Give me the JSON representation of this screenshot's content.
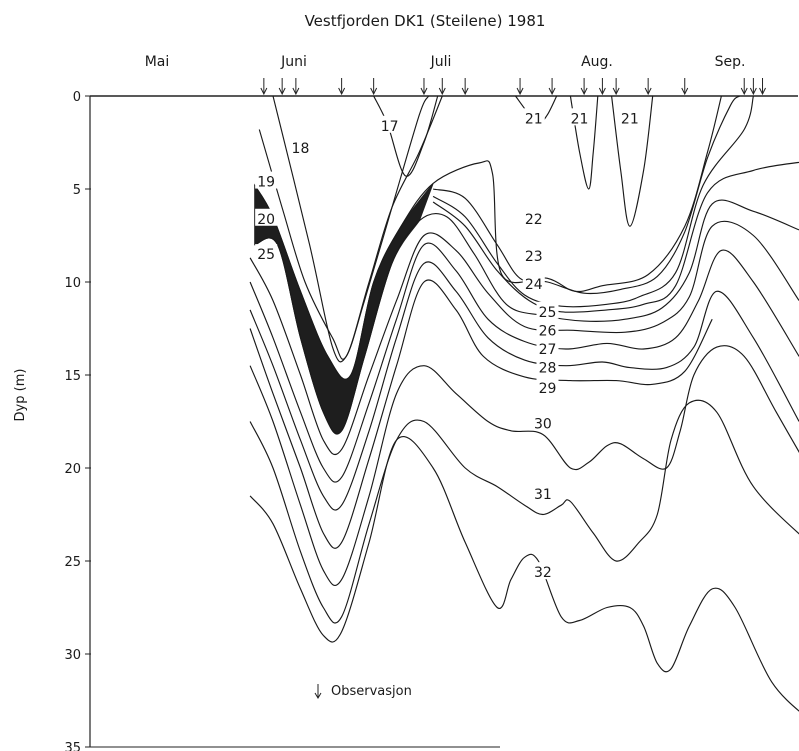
{
  "chart_data": {
    "type": "line",
    "title": "Vestfjorden DK1 (Steilene) 1981",
    "xlabel": "",
    "ylabel": "Dyp (m)",
    "months": [
      "Mai",
      "Juni",
      "Juli",
      "Aug.",
      "Sep."
    ],
    "ylim": [
      0,
      35
    ],
    "y_inverted": true,
    "y_ticks": [
      "0",
      "5",
      "10",
      "15",
      "20",
      "25",
      "30",
      "35"
    ],
    "legend_label": "Observasjon",
    "dark_region": "20–25",
    "observation_days": [
      38,
      42,
      45,
      55,
      62,
      73,
      77,
      82,
      94,
      101,
      108,
      112,
      115,
      122,
      130,
      143,
      145,
      147
    ],
    "isolines": [
      {
        "name": "17",
        "points": [
          [
            62,
            0
          ],
          [
            65,
            1.5
          ],
          [
            69,
            4.3
          ],
          [
            73,
            2.5
          ],
          [
            76,
            0
          ]
        ]
      },
      {
        "name": "18",
        "points": [
          [
            40,
            0
          ],
          [
            48,
            8
          ],
          [
            53,
            13.5
          ],
          [
            56,
            14
          ],
          [
            60,
            11
          ],
          [
            66,
            6
          ],
          [
            72,
            1
          ],
          [
            74,
            0
          ]
        ]
      },
      {
        "name": "19",
        "points": [
          [
            37,
            1.8
          ],
          [
            42,
            6
          ],
          [
            47,
            10
          ],
          [
            53,
            13
          ],
          [
            56,
            14
          ],
          [
            61,
            10
          ],
          [
            66,
            6
          ],
          [
            72,
            3
          ],
          [
            77,
            0
          ]
        ]
      },
      {
        "name": "20",
        "points": [
          [
            36,
            4.8
          ],
          [
            40,
            6.5
          ],
          [
            46,
            10.5
          ],
          [
            52,
            14
          ],
          [
            57,
            15
          ],
          [
            62,
            10
          ],
          [
            68,
            7
          ],
          [
            75,
            4.7
          ],
          [
            85,
            3.6
          ],
          [
            88,
            4.2
          ],
          [
            90,
            9.6
          ],
          [
            100,
            9.8
          ],
          [
            106,
            10.5
          ],
          [
            112,
            10.2
          ],
          [
            122,
            9.6
          ],
          [
            130,
            7
          ],
          [
            135,
            3
          ],
          [
            138,
            0
          ]
        ]
      },
      {
        "name": "21",
        "points": [
          [
            93,
            0
          ],
          [
            96,
            1
          ],
          [
            98,
            1.5
          ],
          [
            100,
            1
          ],
          [
            102,
            0
          ]
        ]
      },
      {
        "name": "21",
        "points": [
          [
            105,
            0
          ],
          [
            107,
            3
          ],
          [
            109,
            5
          ],
          [
            110,
            3
          ],
          [
            111,
            0
          ]
        ]
      },
      {
        "name": "21",
        "points": [
          [
            114,
            0
          ],
          [
            116,
            4
          ],
          [
            118,
            7
          ],
          [
            121,
            4
          ],
          [
            123,
            0
          ]
        ]
      },
      {
        "name": "22",
        "points": [
          [
            75,
            5
          ],
          [
            82,
            5.5
          ],
          [
            89,
            8
          ],
          [
            94,
            9.8
          ],
          [
            100,
            10
          ],
          [
            108,
            10.6
          ],
          [
            116,
            10.4
          ],
          [
            124,
            9.7
          ],
          [
            130,
            7.3
          ],
          [
            135,
            3.3
          ],
          [
            140,
            0.5
          ],
          [
            142,
            0
          ]
        ]
      },
      {
        "name": "23",
        "points": [
          [
            75,
            5.4
          ],
          [
            82,
            6.5
          ],
          [
            89,
            9
          ],
          [
            95,
            10.7
          ],
          [
            103,
            11.3
          ],
          [
            113,
            11.2
          ],
          [
            120,
            10.8
          ],
          [
            128,
            9.5
          ],
          [
            134,
            4.8
          ],
          [
            143,
            1.8
          ],
          [
            145,
            0
          ]
        ]
      },
      {
        "name": "24",
        "points": [
          [
            75,
            5.7
          ],
          [
            82,
            7
          ],
          [
            89,
            9.4
          ],
          [
            96,
            11
          ],
          [
            103,
            11.6
          ],
          [
            113,
            11.5
          ],
          [
            121,
            11.2
          ],
          [
            128,
            10.2
          ],
          [
            135,
            5.2
          ],
          [
            145,
            4
          ],
          [
            157,
            3.5
          ]
        ]
      },
      {
        "name": "25",
        "points": [
          [
            36,
            8
          ],
          [
            41,
            8
          ],
          [
            46,
            13
          ],
          [
            51,
            17
          ],
          [
            55,
            18
          ],
          [
            60,
            14
          ],
          [
            66,
            9
          ],
          [
            72,
            6.7
          ],
          [
            78,
            6.5
          ],
          [
            84,
            8.5
          ],
          [
            91,
            11.2
          ],
          [
            99,
            11.8
          ],
          [
            108,
            12.1
          ],
          [
            117,
            12
          ],
          [
            125,
            11.4
          ],
          [
            131,
            9.5
          ],
          [
            136,
            5.8
          ],
          [
            145,
            6.2
          ],
          [
            155,
            7.2
          ]
        ]
      },
      {
        "name": "26",
        "points": [
          [
            35,
            8.7
          ],
          [
            40,
            11
          ],
          [
            46,
            15
          ],
          [
            51,
            18.5
          ],
          [
            55,
            19
          ],
          [
            61,
            15
          ],
          [
            67,
            11
          ],
          [
            73,
            7.5
          ],
          [
            80,
            8.3
          ],
          [
            87,
            10.6
          ],
          [
            95,
            12.4
          ],
          [
            106,
            12.6
          ],
          [
            117,
            12.7
          ],
          [
            125,
            12.2
          ],
          [
            131,
            10.8
          ],
          [
            136,
            7
          ],
          [
            145,
            7.5
          ],
          [
            155,
            11
          ]
        ]
      },
      {
        "name": "27",
        "points": [
          [
            35,
            10
          ],
          [
            40,
            13
          ],
          [
            46,
            17
          ],
          [
            51,
            20
          ],
          [
            55,
            20.5
          ],
          [
            61,
            16.5
          ],
          [
            67,
            12
          ],
          [
            73,
            8
          ],
          [
            80,
            9.4
          ],
          [
            87,
            12
          ],
          [
            95,
            13.2
          ],
          [
            104,
            13.6
          ],
          [
            113,
            13.3
          ],
          [
            121,
            13.6
          ],
          [
            128,
            13
          ],
          [
            133,
            11
          ],
          [
            138,
            8.3
          ],
          [
            145,
            10
          ],
          [
            155,
            14
          ]
        ]
      },
      {
        "name": "28",
        "points": [
          [
            35,
            11.5
          ],
          [
            40,
            14.5
          ],
          [
            46,
            18.5
          ],
          [
            51,
            21.5
          ],
          [
            55,
            22
          ],
          [
            61,
            18
          ],
          [
            67,
            13
          ],
          [
            73,
            9
          ],
          [
            80,
            10.5
          ],
          [
            87,
            13
          ],
          [
            95,
            14.2
          ],
          [
            104,
            14.5
          ],
          [
            112,
            14.3
          ],
          [
            118,
            14.6
          ],
          [
            126,
            14.6
          ],
          [
            132,
            13.5
          ],
          [
            137,
            10.5
          ],
          [
            145,
            13
          ],
          [
            155,
            17.5
          ]
        ]
      },
      {
        "name": "29",
        "points": [
          [
            35,
            12.5
          ],
          [
            40,
            16
          ],
          [
            46,
            20
          ],
          [
            51,
            23.5
          ],
          [
            55,
            24
          ],
          [
            61,
            19.5
          ],
          [
            67,
            14.5
          ],
          [
            73,
            10
          ],
          [
            80,
            11.5
          ],
          [
            86,
            14
          ],
          [
            95,
            15.1
          ],
          [
            105,
            15.3
          ],
          [
            115,
            15.3
          ],
          [
            123,
            15.5
          ],
          [
            130,
            14.8
          ],
          [
            136,
            12
          ]
        ]
      },
      {
        "name": "30",
        "points": [
          [
            35,
            14.5
          ],
          [
            40,
            17.5
          ],
          [
            46,
            22
          ],
          [
            51,
            25.5
          ],
          [
            55,
            26
          ],
          [
            61,
            21.5
          ],
          [
            67,
            16
          ],
          [
            73,
            14.5
          ],
          [
            80,
            16
          ],
          [
            87,
            17.5
          ],
          [
            92,
            18
          ],
          [
            99,
            18.2
          ],
          [
            105,
            20
          ],
          [
            109,
            19.7
          ],
          [
            113,
            18.8
          ],
          [
            116,
            18.7
          ],
          [
            121,
            19.5
          ],
          [
            126,
            20
          ],
          [
            129,
            18
          ],
          [
            132,
            15
          ],
          [
            137,
            13.5
          ],
          [
            143,
            14
          ],
          [
            150,
            17
          ],
          [
            157,
            20
          ]
        ]
      },
      {
        "name": "31",
        "points": [
          [
            35,
            17.5
          ],
          [
            40,
            20
          ],
          [
            46,
            24.5
          ],
          [
            51,
            27.5
          ],
          [
            55,
            28
          ],
          [
            61,
            23
          ],
          [
            67,
            18.5
          ],
          [
            73,
            17.5
          ],
          [
            82,
            20
          ],
          [
            89,
            21
          ],
          [
            95,
            22
          ],
          [
            99,
            22.5
          ],
          [
            103,
            22
          ],
          [
            105,
            21.8
          ],
          [
            110,
            23.5
          ],
          [
            115,
            25
          ],
          [
            120,
            24
          ],
          [
            124,
            22.5
          ],
          [
            127,
            18.5
          ],
          [
            131,
            16.5
          ],
          [
            137,
            17
          ],
          [
            145,
            21
          ],
          [
            157,
            24
          ]
        ]
      },
      {
        "name": "32",
        "points": [
          [
            35,
            21.5
          ],
          [
            40,
            23
          ],
          [
            46,
            26.5
          ],
          [
            51,
            29
          ],
          [
            55,
            28.8
          ],
          [
            61,
            24
          ],
          [
            67,
            18.5
          ],
          [
            75,
            20
          ],
          [
            82,
            24
          ],
          [
            89,
            27.5
          ],
          [
            92,
            26
          ],
          [
            95,
            24.8
          ],
          [
            98,
            25
          ],
          [
            103,
            28
          ],
          [
            107,
            28.2
          ],
          [
            113,
            27.5
          ],
          [
            118,
            27.5
          ],
          [
            121,
            28.5
          ],
          [
            124,
            30.5
          ],
          [
            127,
            30.8
          ],
          [
            131,
            28.5
          ],
          [
            136,
            26.5
          ],
          [
            141,
            27.5
          ],
          [
            149,
            31.5
          ],
          [
            157,
            33.5
          ]
        ]
      }
    ],
    "isoline_labels": [
      {
        "text": "17",
        "day": 65.5,
        "depth": 1.6
      },
      {
        "text": "18",
        "day": 46,
        "depth": 2.8
      },
      {
        "text": "19",
        "day": 38.5,
        "depth": 4.6
      },
      {
        "text": "20",
        "day": 38.5,
        "depth": 6.6
      },
      {
        "text": "25",
        "day": 38.5,
        "depth": 8.5
      },
      {
        "text": "21",
        "day": 97,
        "depth": 1.2
      },
      {
        "text": "21",
        "day": 107,
        "depth": 1.2
      },
      {
        "text": "21",
        "day": 118,
        "depth": 1.2
      },
      {
        "text": "22",
        "day": 97,
        "depth": 6.6
      },
      {
        "text": "23",
        "day": 97,
        "depth": 8.6
      },
      {
        "text": "24",
        "day": 97,
        "depth": 10.1
      },
      {
        "text": "25",
        "day": 100,
        "depth": 11.6
      },
      {
        "text": "26",
        "day": 100,
        "depth": 12.6
      },
      {
        "text": "27",
        "day": 100,
        "depth": 13.6
      },
      {
        "text": "28",
        "day": 100,
        "depth": 14.6
      },
      {
        "text": "29",
        "day": 100,
        "depth": 15.7
      },
      {
        "text": "30",
        "day": 99,
        "depth": 17.6
      },
      {
        "text": "31",
        "day": 99,
        "depth": 21.4
      },
      {
        "text": "32",
        "day": 99,
        "depth": 25.6
      }
    ]
  }
}
